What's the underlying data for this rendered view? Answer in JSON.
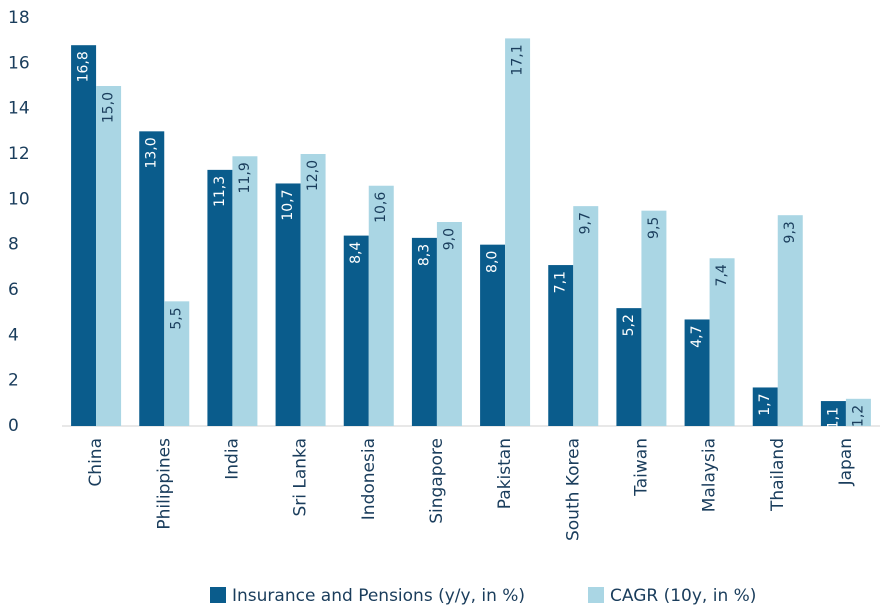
{
  "chart_data": {
    "type": "bar",
    "categories": [
      "China",
      "Philippines",
      "India",
      "Sri Lanka",
      "Indonesia",
      "Singapore",
      "Pakistan",
      "South Korea",
      "Taiwan",
      "Malaysia",
      "Thailand",
      "Japan"
    ],
    "series": [
      {
        "name": "Insurance and Pensions (y/y, in %)",
        "color": "#0a5c8c",
        "values": [
          16.8,
          13.0,
          11.3,
          10.7,
          8.4,
          8.3,
          8.0,
          7.1,
          5.2,
          4.7,
          1.7,
          1.1
        ],
        "value_labels": [
          "16,8",
          "13,0",
          "11,3",
          "10,7",
          "8,4",
          "8,3",
          "8,0",
          "7,1",
          "5,2",
          "4,7",
          "1,7",
          "1,1"
        ]
      },
      {
        "name": "CAGR (10y, in %)",
        "color": "#aad6e4",
        "values": [
          15.0,
          5.5,
          11.9,
          12.0,
          10.6,
          9.0,
          17.1,
          9.7,
          9.5,
          7.4,
          9.3,
          1.2
        ],
        "value_labels": [
          "15,0",
          "5,5",
          "11,9",
          "12,0",
          "10,6",
          "9,0",
          "17,1",
          "9,7",
          "9,5",
          "7,4",
          "9,3",
          "1,2"
        ]
      }
    ],
    "ylim": [
      0,
      18
    ],
    "yticks": [
      0,
      2,
      4,
      6,
      8,
      10,
      12,
      14,
      16,
      18
    ],
    "grid": false,
    "legend": "bottom"
  }
}
